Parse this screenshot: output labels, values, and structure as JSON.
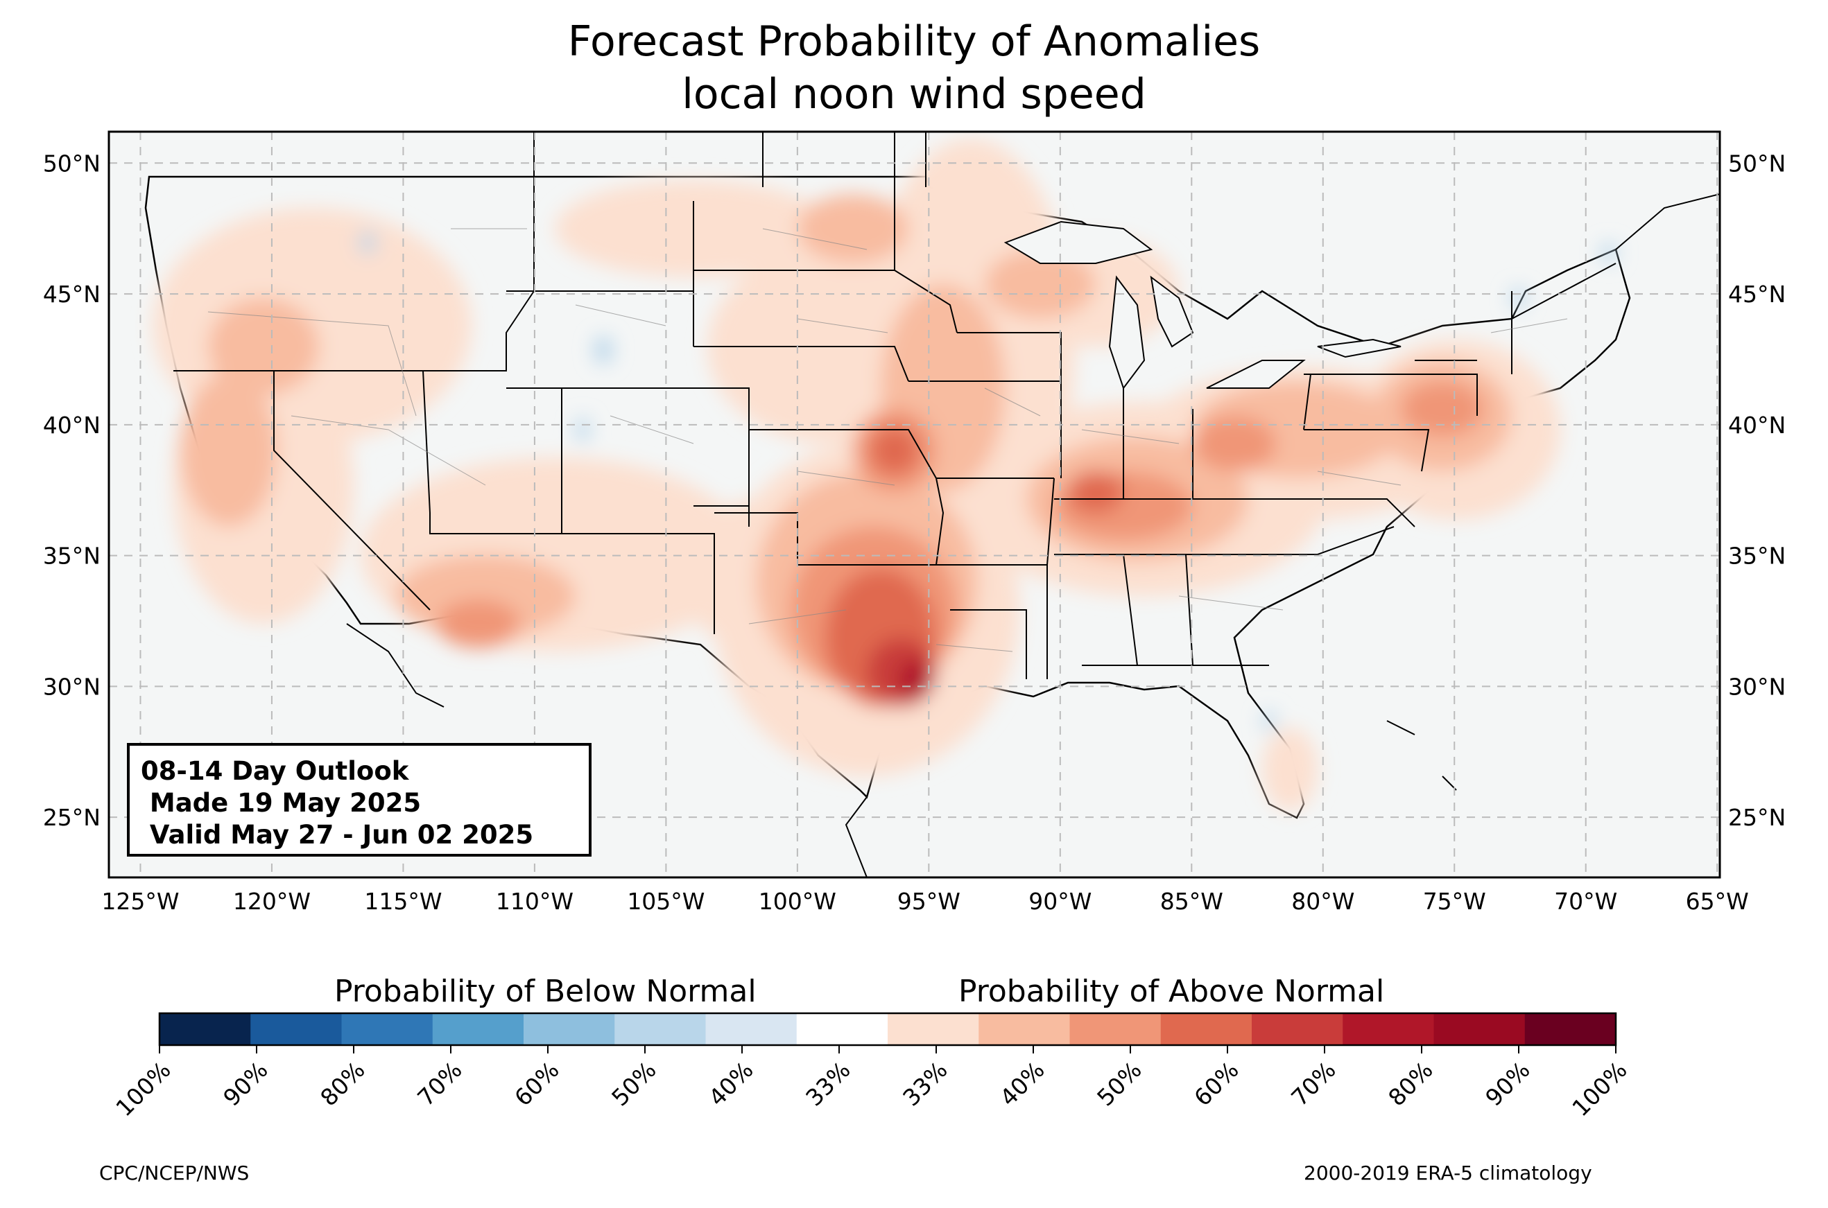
{
  "title": {
    "line1": "Forecast Probability of Anomalies",
    "line2": "local noon wind speed"
  },
  "map": {
    "lat_labels": [
      "50°N",
      "45°N",
      "40°N",
      "35°N",
      "30°N",
      "25°N"
    ],
    "lon_labels": [
      "125°W",
      "120°W",
      "115°W",
      "110°W",
      "105°W",
      "100°W",
      "95°W",
      "90°W",
      "85°W",
      "80°W",
      "75°W",
      "70°W",
      "65°W"
    ],
    "lon_range": [
      -126.2,
      -64.9
    ],
    "lat_range": [
      22.7,
      51.2
    ]
  },
  "outlook": {
    "line1": "08-14 Day Outlook",
    "line2": " Made 19 May 2025",
    "line3": " Valid May 27 - Jun 02 2025"
  },
  "colorbar": {
    "below_label": "Probability of Below Normal",
    "above_label": "Probability of Above Normal",
    "ticks": [
      "100%",
      "90%",
      "80%",
      "70%",
      "60%",
      "50%",
      "40%",
      "33%",
      "33%",
      "40%",
      "50%",
      "60%",
      "70%",
      "80%",
      "90%",
      "100%"
    ],
    "colors": [
      "#08244e",
      "#1a5a9c",
      "#2f77b6",
      "#559fcc",
      "#8ebfde",
      "#b9d6ea",
      "#d9e6f2",
      "#ffffff",
      "#fce0d0",
      "#f8bca0",
      "#f09677",
      "#e0694f",
      "#c93c3a",
      "#b01729",
      "#9a0a22",
      "#6a0020"
    ]
  },
  "footer": {
    "left": "CPC/NCEP/NWS",
    "right": "2000-2019 ERA-5 climatology"
  }
}
